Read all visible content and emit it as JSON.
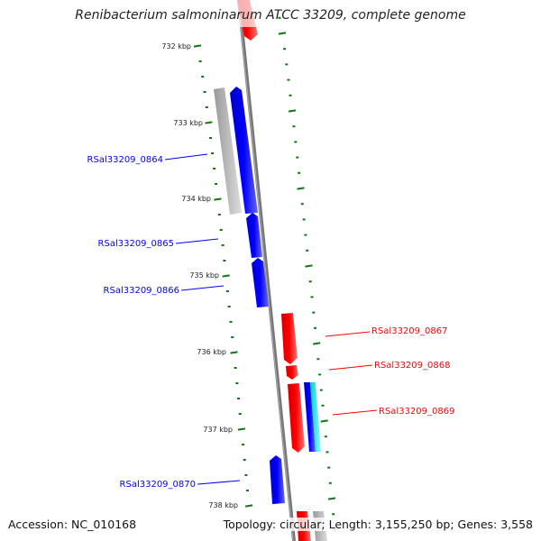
{
  "title": "Renibacterium salmoninarum ATCC 33209, complete genome",
  "accession": "Accession: NC_010168",
  "summary": "Topology: circular; Length: 3,155,250 bp; Genes: 3,558",
  "ticks": [
    "732 kbp",
    "733 kbp",
    "734 kbp",
    "735 kbp",
    "736 kbp",
    "737 kbp",
    "738 kbp"
  ],
  "genes": {
    "g0864": "RSal33209_0864",
    "g0865": "RSal33209_0865",
    "g0866": "RSal33209_0866",
    "g0867": "RSal33209_0867",
    "g0868": "RSal33209_0868",
    "g0869": "RSal33209_0869",
    "g0870": "RSal33209_0870"
  },
  "colors": {
    "forward": "#ff0000",
    "reverse": "#0000ff",
    "other": "#00ffff",
    "pseudo": "#bbbbbb",
    "ticks": "#117711"
  }
}
